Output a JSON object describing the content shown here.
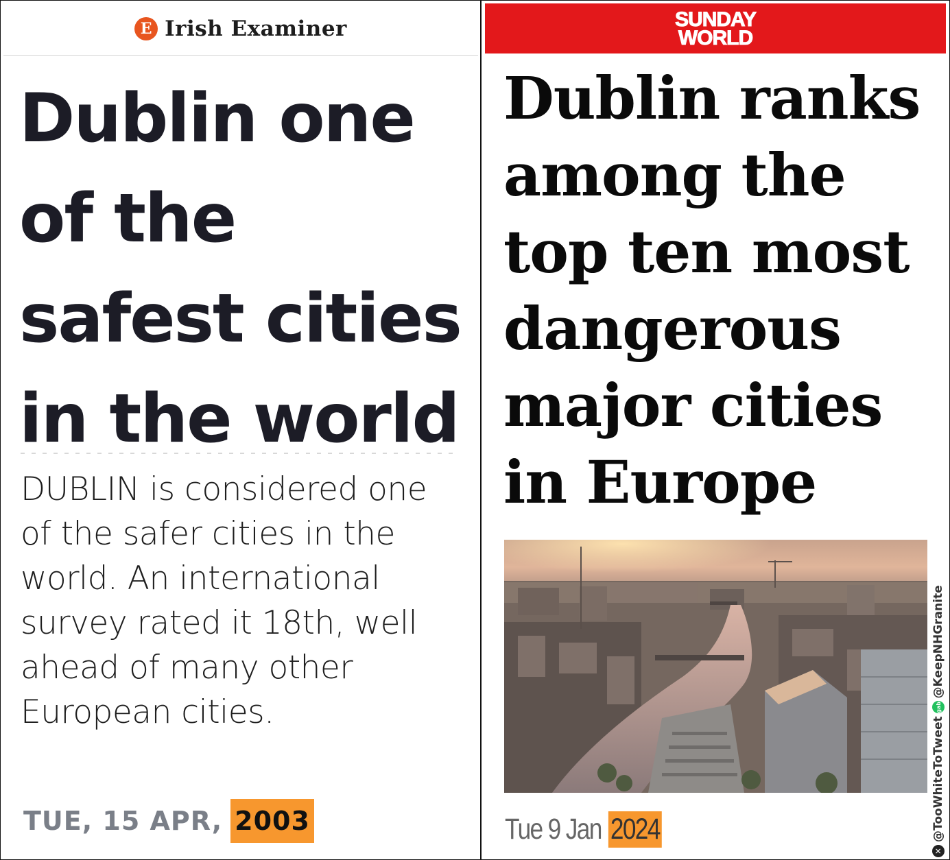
{
  "left": {
    "publication": "Irish Examiner",
    "logo_letter": "E",
    "headline": "Dublin one of the safest cities in the world",
    "body": "DUBLIN is considered one of the safer cities in the world. An international survey rated it 18th, well ahead of many other European cities.",
    "date_prefix": "TUE, 15 APR,",
    "year": "2003"
  },
  "right": {
    "publication_line1": "SUNDAY",
    "publication_line2": "WORLD",
    "headline": "Dublin ranks among the top ten most dangerous major cities in Europe",
    "photo_alt": "Aerial view of Dublin and the River Liffey at sunset",
    "date_prefix": "Tue 9 Jan",
    "year": "2024"
  },
  "watermark": {
    "handle1": "@TooWhiteToTweet",
    "handle2": "@KeepNHGranite",
    "x_icon": "x-logo-icon",
    "gab_icon": "gab-logo-icon",
    "gab_text": "gab"
  },
  "colors": {
    "highlight": "#f7972e",
    "sunday_world_red": "#e3181b",
    "irish_examiner_orange": "#e8551f"
  }
}
